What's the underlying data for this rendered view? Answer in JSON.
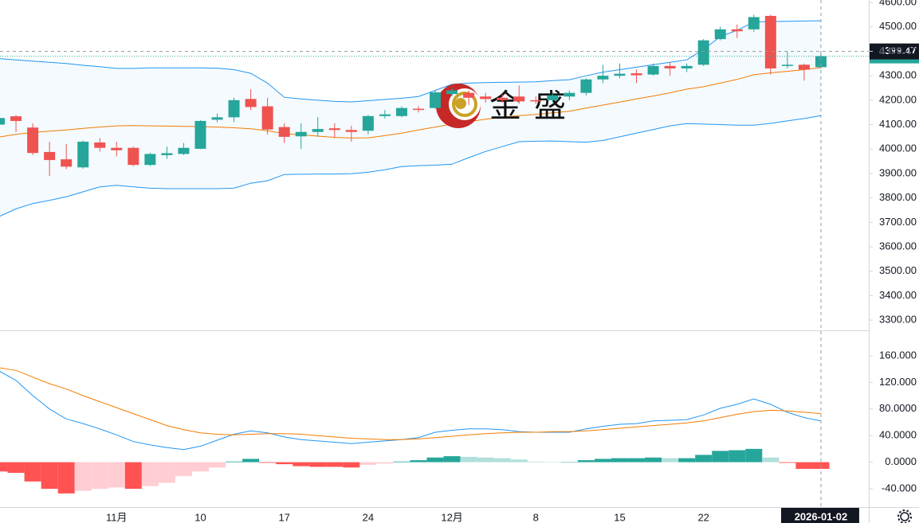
{
  "chart_data": [
    {
      "type": "candlestick",
      "categories": [
        null,
        null,
        null,
        null,
        null,
        null,
        null,
        "11月",
        null,
        null,
        null,
        null,
        "10",
        null,
        null,
        null,
        null,
        "17",
        null,
        null,
        null,
        null,
        "24",
        null,
        null,
        null,
        null,
        "12月",
        null,
        null,
        null,
        null,
        "8",
        null,
        null,
        null,
        null,
        "15",
        null,
        null,
        null,
        null,
        "22",
        null,
        null,
        null,
        null,
        null,
        null,
        "2026-01-02"
      ],
      "open": [
        4100,
        4134,
        4088,
        3988,
        3958,
        3925,
        4027,
        4005,
        4005,
        3935,
        3975,
        3980,
        4001,
        4120,
        4130,
        4205,
        4175,
        4090,
        4052,
        4070,
        4085,
        4078,
        4075,
        4135,
        4135,
        4165,
        4168,
        4225,
        4230,
        4215,
        4210,
        4215,
        4200,
        4200,
        4215,
        4230,
        4285,
        4300,
        4310,
        4305,
        4340,
        4330,
        4345,
        4450,
        4490,
        4490,
        4545,
        4340,
        4345,
        4335
      ],
      "high": [
        4140,
        4140,
        4105,
        4030,
        4020,
        4035,
        4045,
        4030,
        4010,
        3985,
        4010,
        4025,
        4118,
        4145,
        4210,
        4245,
        4210,
        4105,
        4105,
        4130,
        4105,
        4095,
        4140,
        4160,
        4175,
        4175,
        4240,
        4250,
        4240,
        4230,
        4225,
        4260,
        4215,
        4230,
        4240,
        4290,
        4345,
        4350,
        4325,
        4350,
        4355,
        4350,
        4450,
        4500,
        4510,
        4550,
        4550,
        4400,
        4350,
        4400
      ],
      "low": [
        4090,
        4070,
        3975,
        3890,
        3918,
        3920,
        3990,
        3970,
        3930,
        3930,
        3960,
        3975,
        4000,
        4110,
        4110,
        4160,
        4060,
        4025,
        4000,
        4050,
        4045,
        4030,
        4060,
        4125,
        4130,
        4150,
        4165,
        4215,
        4180,
        4190,
        4190,
        4185,
        4185,
        4190,
        4200,
        4220,
        4270,
        4290,
        4270,
        4300,
        4300,
        4315,
        4340,
        4445,
        4455,
        4480,
        4305,
        4330,
        4280,
        4330
      ],
      "close": [
        4127,
        4115,
        3984,
        3955,
        3928,
        4030,
        4005,
        3995,
        3935,
        3980,
        3983,
        4005,
        4115,
        4130,
        4200,
        4172,
        4080,
        4050,
        4070,
        4082,
        4078,
        4070,
        4135,
        4142,
        4168,
        4160,
        4232,
        4240,
        4210,
        4205,
        4200,
        4195,
        4195,
        4220,
        4230,
        4285,
        4300,
        4308,
        4302,
        4340,
        4330,
        4340,
        4445,
        4490,
        4482,
        4540,
        4330,
        4345,
        4325,
        4380
      ],
      "upper": [
        4370,
        4365,
        4360,
        4355,
        4350,
        4343,
        4337,
        4330,
        4330,
        4332,
        4332,
        4332,
        4332,
        4331,
        4325,
        4310,
        4270,
        4212,
        4205,
        4200,
        4195,
        4193,
        4198,
        4203,
        4208,
        4215,
        4240,
        4265,
        4270,
        4272,
        4273,
        4274,
        4275,
        4280,
        4284,
        4300,
        4315,
        4325,
        4335,
        4345,
        4355,
        4365,
        4408,
        4460,
        4486,
        4520,
        4522,
        4523,
        4524,
        4525
      ],
      "middle": [
        4049,
        4060,
        4068,
        4073,
        4078,
        4085,
        4090,
        4095,
        4096,
        4095,
        4094,
        4093,
        4092,
        4090,
        4087,
        4083,
        4075,
        4063,
        4058,
        4053,
        4048,
        4045,
        4046,
        4055,
        4065,
        4078,
        4090,
        4102,
        4112,
        4122,
        4130,
        4137,
        4142,
        4148,
        4155,
        4168,
        4180,
        4192,
        4205,
        4217,
        4230,
        4245,
        4255,
        4270,
        4285,
        4304,
        4312,
        4318,
        4325,
        4333
      ],
      "lower": [
        3724,
        3755,
        3777,
        3790,
        3805,
        3825,
        3845,
        3852,
        3845,
        3840,
        3838,
        3838,
        3838,
        3838,
        3840,
        3860,
        3870,
        3896,
        3897,
        3898,
        3898,
        3899,
        3905,
        3915,
        3928,
        3932,
        3934,
        3938,
        3965,
        3990,
        4010,
        4030,
        4032,
        4033,
        4030,
        4028,
        4035,
        4050,
        4065,
        4080,
        4095,
        4104,
        4102,
        4100,
        4098,
        4098,
        4105,
        4115,
        4125,
        4137
      ],
      "up_color": "#26a69a",
      "down_color": "#ef5350",
      "band_color": "#2196f3",
      "middle_color": "#f57c00",
      "ylim": [
        3258,
        4610
      ],
      "yticks": [
        {
          "value": 4600,
          "label": "4600.00"
        },
        {
          "value": 4500,
          "label": "4500.00"
        },
        {
          "value": 4400,
          "label": "4400.00"
        },
        {
          "value": 4300,
          "label": "4300.00"
        },
        {
          "value": 4200,
          "label": "4200.00"
        },
        {
          "value": 4100,
          "label": "4100.00"
        },
        {
          "value": 4000,
          "label": "4000.00"
        },
        {
          "value": 3900,
          "label": "3900.00"
        },
        {
          "value": 3800,
          "label": "3800.00"
        },
        {
          "value": 3700,
          "label": "3700.00"
        },
        {
          "value": 3600,
          "label": "3600.00"
        },
        {
          "value": 3500,
          "label": "3500.00"
        },
        {
          "value": 3400,
          "label": "3400.00"
        },
        {
          "value": 3300,
          "label": "3300.00"
        }
      ],
      "crosshair_price": 4399.47,
      "watermark": "金盛"
    },
    {
      "type": "macd",
      "dif": [
        137,
        123,
        100,
        80,
        65,
        58,
        50,
        41,
        31,
        26,
        22,
        19,
        24,
        33,
        42,
        47,
        44,
        38,
        34,
        32,
        30,
        28,
        30,
        32,
        34,
        37,
        45,
        48,
        50,
        50,
        49,
        46,
        45,
        45,
        45,
        50,
        54,
        57,
        58,
        62,
        63,
        64,
        71,
        81,
        87,
        95,
        87,
        75,
        67,
        62
      ],
      "dea": [
        142,
        138,
        128,
        118,
        110,
        100,
        91,
        82,
        73,
        64,
        55,
        49,
        44,
        42,
        41,
        42,
        43,
        43,
        42,
        40,
        38,
        36,
        35,
        34,
        34,
        35,
        37,
        39,
        41,
        43,
        44,
        45,
        45,
        46,
        46,
        47,
        49,
        51,
        53,
        55,
        57,
        59,
        62,
        67,
        72,
        76,
        78,
        77,
        75,
        73
      ],
      "hist": [
        -14,
        -16,
        -29,
        -40,
        -47,
        -43,
        -40,
        -38,
        -40,
        -36,
        -31,
        -21,
        -14,
        -8,
        1,
        5,
        -1,
        -3,
        -6,
        -7,
        -7,
        -8,
        -4,
        -2,
        1,
        3,
        7,
        9,
        8,
        7,
        6,
        4,
        1,
        0,
        0,
        3,
        5,
        6,
        6,
        7,
        6,
        6,
        11,
        17,
        18,
        20,
        7,
        -1,
        -10,
        -10
      ],
      "dif_color": "#2196f3",
      "dea_color": "#f57c00",
      "hist_colors": {
        "pos_up": "#26a69a",
        "pos_down": "#b2dfdb",
        "neg_down": "#ff5252",
        "neg_up": "#ffcdd2"
      },
      "ylim": [
        -67.5,
        197
      ],
      "yticks": [
        {
          "value": 160,
          "label": "160.000"
        },
        {
          "value": 120,
          "label": "120.000"
        },
        {
          "value": 80,
          "label": "80.0000"
        },
        {
          "value": 40,
          "label": "40.0000"
        },
        {
          "value": 0,
          "label": "0.0000"
        },
        {
          "value": -40,
          "label": "-40.000"
        }
      ]
    }
  ]
}
